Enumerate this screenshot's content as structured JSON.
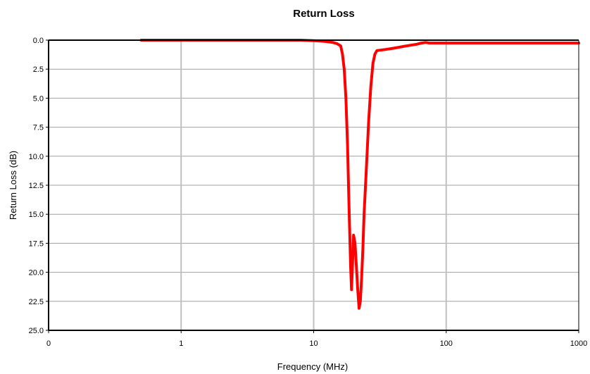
{
  "chart_data": {
    "type": "line",
    "title": "Return Loss",
    "xlabel": "Frequency (MHz)",
    "ylabel": "Return Loss (dB)",
    "x_scale": "log",
    "xlim": [
      0.1,
      1000
    ],
    "ylim": [
      0,
      25
    ],
    "y_inverted": true,
    "x_ticks": [
      {
        "value": 0.1,
        "label": "0"
      },
      {
        "value": 1,
        "label": "1"
      },
      {
        "value": 10,
        "label": "10"
      },
      {
        "value": 100,
        "label": "100"
      },
      {
        "value": 1000,
        "label": "1000"
      }
    ],
    "y_ticks": [
      {
        "value": 0,
        "label": "0.0"
      },
      {
        "value": 2.5,
        "label": "2.5"
      },
      {
        "value": 5,
        "label": "5.0"
      },
      {
        "value": 7.5,
        "label": "7.5"
      },
      {
        "value": 10,
        "label": "10.0"
      },
      {
        "value": 12.5,
        "label": "12.5"
      },
      {
        "value": 15,
        "label": "15.0"
      },
      {
        "value": 17.5,
        "label": "17.5"
      },
      {
        "value": 20,
        "label": "20.0"
      },
      {
        "value": 22.5,
        "label": "22.5"
      },
      {
        "value": 25,
        "label": "25.0"
      }
    ],
    "grid": {
      "vertical": true,
      "horizontal": true
    },
    "colors": {
      "line": "#ff0000",
      "vertical_grid": "#c0c0c0",
      "horizontal_grid": "#a0a0a0",
      "axes": "#000000"
    },
    "series": [
      {
        "x": [
          0.5,
          1,
          2,
          5,
          8,
          10,
          12,
          14,
          15,
          16,
          16.5,
          17,
          17.5,
          18,
          18.5,
          19,
          19.3,
          19.7,
          20,
          20.5,
          21,
          21.5,
          22,
          22.5,
          23,
          23.5,
          24,
          25,
          26,
          27,
          28,
          29,
          30,
          35,
          40,
          50,
          60,
          65,
          70,
          75,
          100,
          200,
          500,
          1000
        ],
        "y": [
          0.0,
          0.0,
          0.0,
          0.0,
          0.0,
          0.05,
          0.1,
          0.2,
          0.3,
          0.5,
          1.2,
          2.5,
          5.0,
          9.0,
          14.5,
          19.5,
          21.5,
          19.0,
          16.8,
          17.5,
          19.5,
          21.5,
          23.1,
          22.5,
          20.5,
          18.0,
          15.0,
          11.0,
          7.0,
          4.0,
          2.0,
          1.2,
          0.9,
          0.8,
          0.7,
          0.5,
          0.35,
          0.25,
          0.2,
          0.25,
          0.25,
          0.25,
          0.25,
          0.25
        ]
      }
    ]
  }
}
